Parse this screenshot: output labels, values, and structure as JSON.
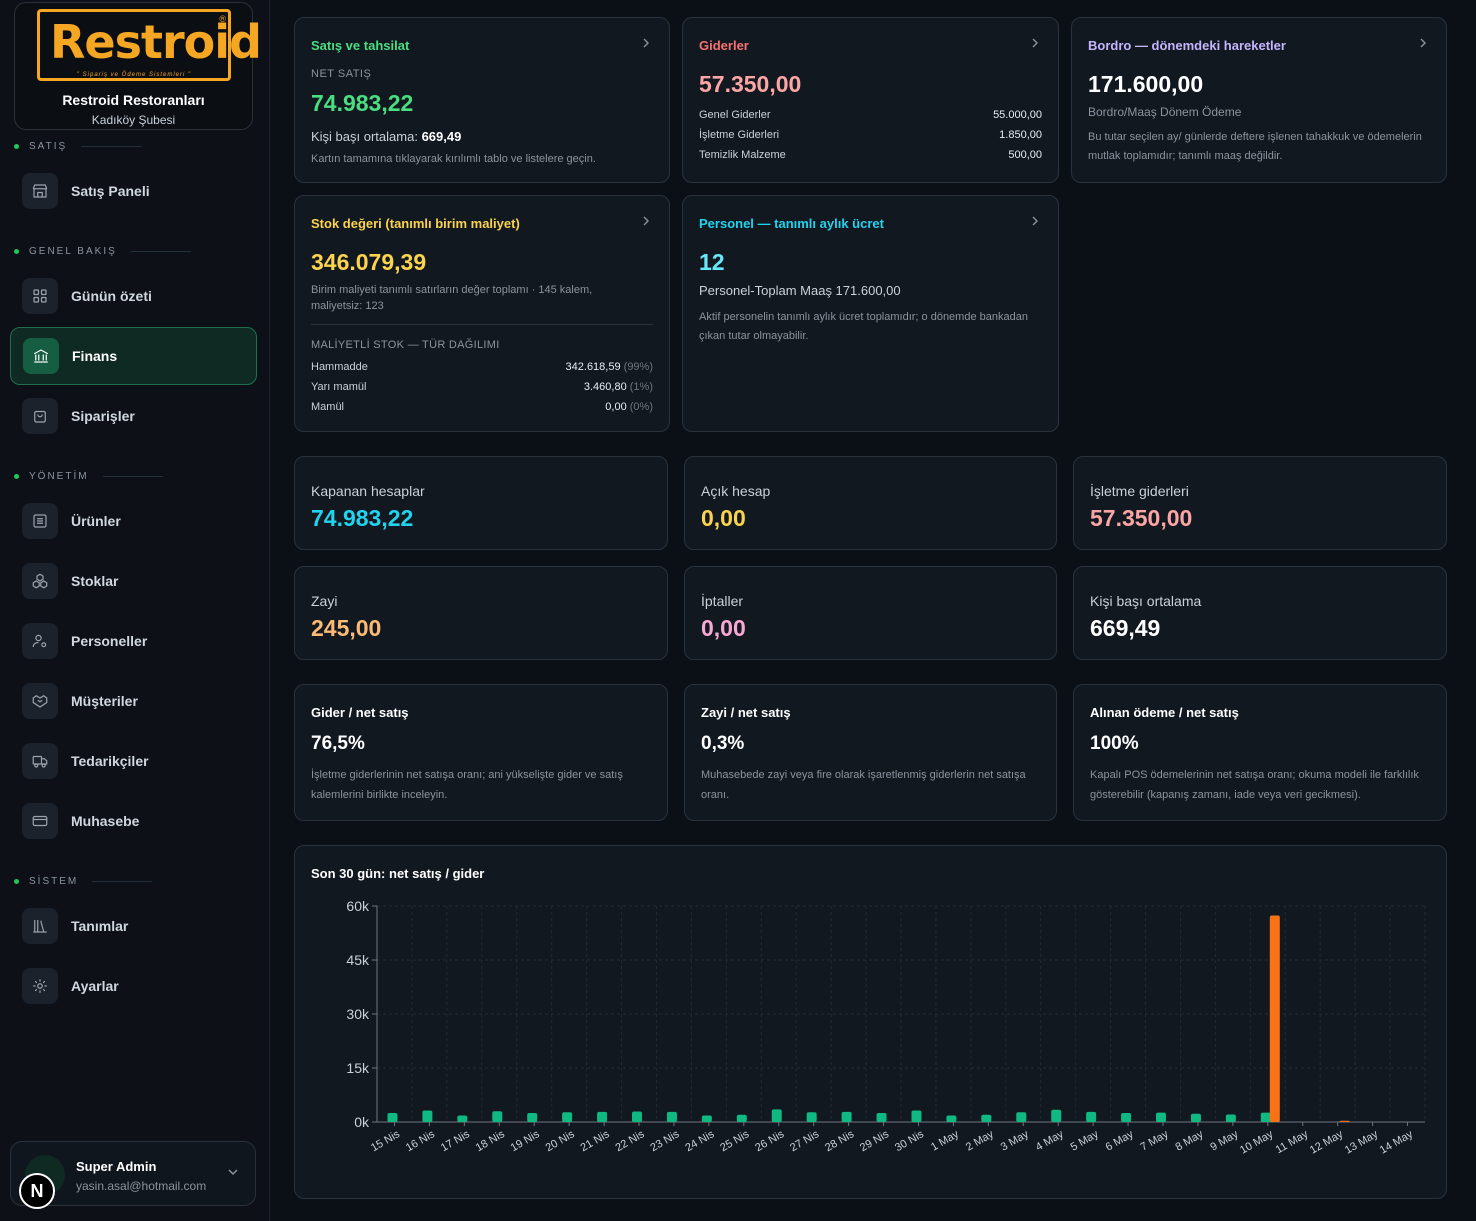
{
  "brand": {
    "logo_text": "Restroid",
    "logo_tagline": "\" Sipariş ve Ödeme Sistemleri \"",
    "name": "Restroid Restoranları",
    "branch": "Kadıköy Şubesi"
  },
  "sidebar": {
    "sections": [
      {
        "label": "SATIŞ"
      },
      {
        "label": "GENEL BAKIŞ"
      },
      {
        "label": "YÖNETİM"
      },
      {
        "label": "SİSTEM"
      }
    ],
    "items": [
      {
        "label": "Satış Paneli",
        "icon": "store-icon"
      },
      {
        "label": "Günün özeti",
        "icon": "grid-icon"
      },
      {
        "label": "Finans",
        "icon": "bank-icon",
        "active": true
      },
      {
        "label": "Siparişler",
        "icon": "bag-icon"
      },
      {
        "label": "Ürünler",
        "icon": "list-icon"
      },
      {
        "label": "Stoklar",
        "icon": "boxes-icon"
      },
      {
        "label": "Personeller",
        "icon": "user-gear-icon"
      },
      {
        "label": "Müşteriler",
        "icon": "handshake-icon"
      },
      {
        "label": "Tedarikçiler",
        "icon": "truck-icon"
      },
      {
        "label": "Muhasebe",
        "icon": "card-icon"
      },
      {
        "label": "Tanımlar",
        "icon": "library-icon"
      },
      {
        "label": "Ayarlar",
        "icon": "gear-icon"
      }
    ]
  },
  "user": {
    "name": "Super Admin",
    "email": "yasin.asal@hotmail.com",
    "avatar_letter": "N"
  },
  "colors": {
    "green": "#4ade80",
    "red": "#f87171",
    "purple": "#c4b5fd",
    "yellow": "#fcd34d",
    "cyan": "#22d3ee",
    "orange": "#fdba74",
    "pink": "#f9a8d4",
    "bar_sales": "#10b981",
    "bar_expense": "#f97316"
  },
  "cards": {
    "sales": {
      "title": "Satış ve tahsilat",
      "sub_label": "NET SATIŞ",
      "value": "74.983,22",
      "per_person_label": "Kişi başı ortalama:",
      "per_person_value": "669,49",
      "hint": "Kartın tamamına tıklayarak kırılımlı tablo ve listelere geçin."
    },
    "expenses": {
      "title": "Giderler",
      "value": "57.350,00",
      "rows": [
        {
          "label": "Genel Giderler",
          "value": "55.000,00"
        },
        {
          "label": "İşletme Giderleri",
          "value": "1.850,00"
        },
        {
          "label": "Temizlik Malzeme",
          "value": "500,00"
        }
      ]
    },
    "payroll": {
      "title": "Bordro — dönemdeki hareketler",
      "value": "171.600,00",
      "sub": "Bordro/Maaş Dönem Ödeme",
      "desc": "Bu tutar seçilen ay/ günlerde deftere işlenen tahakkuk ve ödemelerin mutlak toplamıdır; tanımlı maaş değildir."
    },
    "stock": {
      "title": "Stok değeri (tanımlı birim maliyet)",
      "value": "346.079,39",
      "desc": "Birim maliyeti tanımlı satırların değer toplamı · 145 kalem, maliyetsiz: 123",
      "dist_title": "MALİYETLİ STOK — TÜR DAĞILIMI",
      "rows": [
        {
          "label": "Hammadde",
          "value": "342.618,59",
          "pct": "(99%)"
        },
        {
          "label": "Yarı mamül",
          "value": "3.460,80",
          "pct": "(1%)"
        },
        {
          "label": "Mamül",
          "value": "0,00",
          "pct": "(0%)"
        }
      ]
    },
    "staff": {
      "title": "Personel — tanımlı aylık ücret",
      "value": "12",
      "sub": "Personel-Toplam Maaş 171.600,00",
      "desc": "Aktif personelin tanımlı aylık ücret toplamıdır; o dönemde bankadan çıkan tutar olmayabilir."
    }
  },
  "stats": [
    {
      "label": "Kapanan hesaplar",
      "value": "74.983,22"
    },
    {
      "label": "Açık hesap",
      "value": "0,00"
    },
    {
      "label": "İşletme giderleri",
      "value": "57.350,00"
    },
    {
      "label": "Zayi",
      "value": "245,00"
    },
    {
      "label": "İptaller",
      "value": "0,00"
    },
    {
      "label": "Kişi başı ortalama",
      "value": "669,49"
    }
  ],
  "ratios": [
    {
      "label": "Gider / net satış",
      "value": "76,5%",
      "desc": "İşletme giderlerinin net satışa oranı; ani yükselişte gider ve satış kalemlerini birlikte inceleyin."
    },
    {
      "label": "Zayi / net satış",
      "value": "0,3%",
      "desc": "Muhasebede zayi veya fire olarak işaretlenmiş giderlerin net satışa oranı."
    },
    {
      "label": "Alınan ödeme / net satış",
      "value": "100%",
      "desc": "Kapalı POS ödemelerinin net satışa oranı; okuma modeli ile farklılık gösterebilir (kapanış zamanı, iade veya veri gecikmesi)."
    }
  ],
  "chart_data": {
    "type": "bar",
    "title": "Son 30 gün: net satış / gider",
    "categories": [
      "15 Nis",
      "16 Nis",
      "17 Nis",
      "18 Nis",
      "19 Nis",
      "20 Nis",
      "21 Nis",
      "22 Nis",
      "23 Nis",
      "24 Nis",
      "25 Nis",
      "26 Nis",
      "27 Nis",
      "28 Nis",
      "29 Nis",
      "30 Nis",
      "1 May",
      "2 May",
      "3 May",
      "4 May",
      "5 May",
      "6 May",
      "7 May",
      "8 May",
      "9 May",
      "10 May",
      "11 May",
      "12 May",
      "13 May",
      "14 May"
    ],
    "series": [
      {
        "values": [
          2500,
          3200,
          1800,
          3000,
          2500,
          2700,
          2800,
          2900,
          2800,
          1800,
          2000,
          3500,
          2700,
          2800,
          2500,
          3200,
          1800,
          2000,
          2700,
          3400,
          2800,
          2500,
          2600,
          2300,
          2100,
          2600,
          0,
          0,
          0,
          0
        ]
      },
      {
        "values": [
          0,
          0,
          0,
          0,
          0,
          0,
          0,
          0,
          0,
          0,
          0,
          0,
          0,
          0,
          0,
          0,
          0,
          0,
          0,
          0,
          0,
          0,
          0,
          0,
          0,
          57350,
          0,
          350,
          0,
          0
        ]
      }
    ],
    "y_ticks": [
      "0k",
      "15k",
      "30k",
      "45k",
      "60k"
    ],
    "ylim": [
      0,
      60000
    ],
    "grid": true
  }
}
